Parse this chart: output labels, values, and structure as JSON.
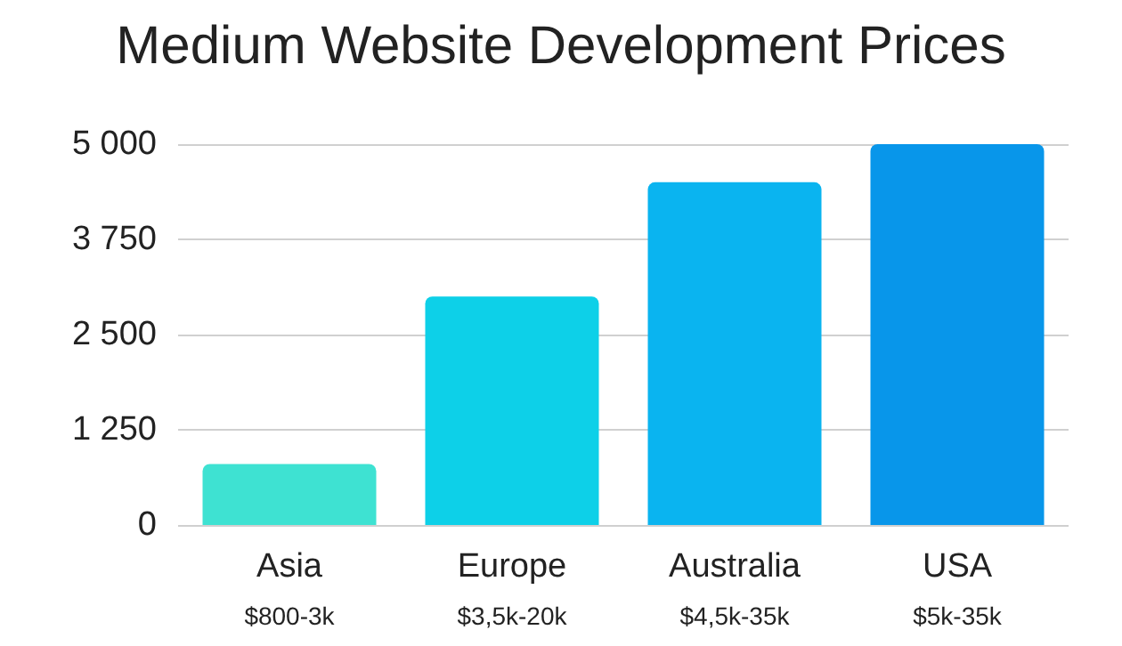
{
  "chart_data": {
    "type": "bar",
    "title": "Medium Website Development Prices",
    "categories": [
      "Asia",
      "Europe",
      "Australia",
      "USA"
    ],
    "values": [
      800,
      3000,
      4500,
      5000
    ],
    "colors": [
      "#3ee2d2",
      "#0dd0e8",
      "#0ab4f0",
      "#0896ea"
    ],
    "ylim": [
      0,
      5000
    ],
    "yticks": [
      0,
      {
        "value": 1250,
        "label": "1 250"
      },
      {
        "value": 2500,
        "label": "2 500"
      },
      {
        "value": 3750,
        "label": "3 750"
      },
      {
        "value": 5000,
        "label": "5 000"
      }
    ],
    "grid": "y",
    "annotations": [
      "$800-3k",
      "$3,5k-20k",
      "$4,5k-35k",
      "$5k-35k"
    ]
  }
}
